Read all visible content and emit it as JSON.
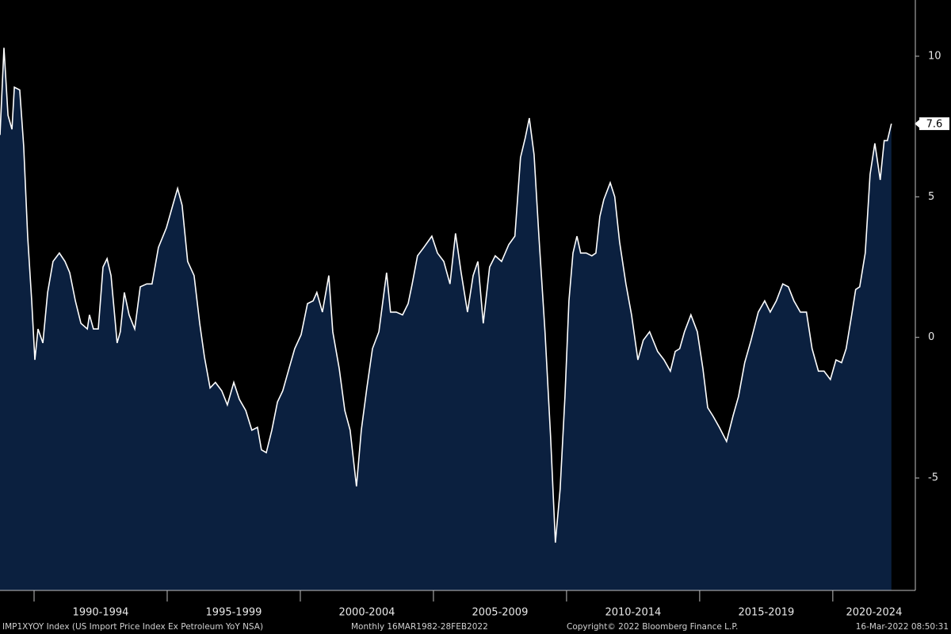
{
  "chart_data": {
    "type": "area",
    "series": [
      {
        "name": "IMP1XYOY Index",
        "color": "#ffffff",
        "fill": "#0b203f",
        "x": [
          1988.72,
          1988.87,
          1989.02,
          1989.17,
          1989.26,
          1989.46,
          1989.61,
          1989.76,
          1989.91,
          1990.03,
          1990.15,
          1990.33,
          1990.51,
          1990.71,
          1990.95,
          1991.16,
          1991.34,
          1991.55,
          1991.76,
          1992.0,
          1992.08,
          1992.23,
          1992.41,
          1992.59,
          1992.74,
          1992.89,
          1993.12,
          1993.24,
          1993.39,
          1993.57,
          1993.78,
          1993.99,
          1994.23,
          1994.43,
          1994.67,
          1994.97,
          1995.21,
          1995.39,
          1995.56,
          1995.77,
          1996.01,
          1996.22,
          1996.4,
          1996.61,
          1996.81,
          1997.05,
          1997.26,
          1997.5,
          1997.71,
          1997.95,
          1998.18,
          1998.39,
          1998.54,
          1998.72,
          1998.93,
          1999.14,
          1999.34,
          1999.58,
          1999.79,
          2000.03,
          2000.27,
          2000.48,
          2000.62,
          2000.83,
          2001.07,
          2001.22,
          2001.46,
          2001.67,
          2001.87,
          2002.11,
          2002.29,
          2002.5,
          2002.71,
          2002.95,
          2003.24,
          2003.39,
          2003.6,
          2003.84,
          2004.05,
          2004.2,
          2004.4,
          2004.64,
          2004.94,
          2005.15,
          2005.39,
          2005.62,
          2005.83,
          2006.04,
          2006.28,
          2006.49,
          2006.67,
          2006.87,
          2007.11,
          2007.32,
          2007.56,
          2007.83,
          2008.06,
          2008.27,
          2008.45,
          2008.6,
          2008.78,
          2008.96,
          2009.19,
          2009.4,
          2009.58,
          2009.76,
          2009.94,
          2010.09,
          2010.24,
          2010.39,
          2010.53,
          2010.74,
          2010.95,
          2011.1,
          2011.25,
          2011.4,
          2011.64,
          2011.81,
          2011.99,
          2012.23,
          2012.44,
          2012.68,
          2012.88,
          2013.12,
          2013.42,
          2013.66,
          2013.9,
          2014.08,
          2014.25,
          2014.43,
          2014.67,
          2014.91,
          2015.12,
          2015.3,
          2015.5,
          2015.74,
          2016.01,
          2016.25,
          2016.46,
          2016.69,
          2016.93,
          2017.2,
          2017.44,
          2017.65,
          2017.88,
          2018.12,
          2018.33,
          2018.54,
          2018.78,
          2019.01,
          2019.22,
          2019.46,
          2019.67,
          2019.91,
          2020.12,
          2020.33,
          2020.5,
          2020.71,
          2020.86,
          2021.01,
          2021.22,
          2021.4,
          2021.58,
          2021.78,
          2021.93,
          2022.05,
          2022.2
        ],
        "values": [
          7.2,
          10.3,
          7.9,
          7.4,
          8.9,
          8.8,
          6.8,
          3.6,
          1.3,
          -0.8,
          0.3,
          -0.2,
          1.6,
          2.7,
          3.0,
          2.7,
          2.3,
          1.3,
          0.5,
          0.3,
          0.8,
          0.3,
          0.3,
          2.5,
          2.8,
          2.2,
          -0.2,
          0.2,
          1.6,
          0.8,
          0.3,
          1.8,
          1.9,
          1.9,
          3.2,
          3.9,
          4.7,
          5.3,
          4.7,
          2.7,
          2.2,
          0.5,
          -0.7,
          -1.8,
          -1.6,
          -1.9,
          -2.4,
          -1.6,
          -2.2,
          -2.6,
          -3.3,
          -3.2,
          -4.0,
          -4.1,
          -3.3,
          -2.3,
          -1.9,
          -1.1,
          -0.4,
          0.1,
          1.2,
          1.3,
          1.6,
          0.9,
          2.2,
          0.2,
          -1.1,
          -2.6,
          -3.3,
          -5.3,
          -3.3,
          -1.8,
          -0.4,
          0.2,
          2.3,
          0.9,
          0.9,
          0.8,
          1.2,
          1.9,
          2.9,
          3.2,
          3.6,
          3.0,
          2.7,
          1.9,
          3.7,
          2.3,
          0.9,
          2.2,
          2.7,
          0.5,
          2.5,
          2.9,
          2.7,
          3.3,
          3.6,
          6.4,
          7.1,
          7.8,
          6.5,
          3.6,
          0.2,
          -3.5,
          -7.3,
          -5.4,
          -2.1,
          1.3,
          3.0,
          3.6,
          3.0,
          3.0,
          2.9,
          3.0,
          4.3,
          4.9,
          5.5,
          5.0,
          3.4,
          1.9,
          0.8,
          -0.8,
          -0.1,
          0.2,
          -0.5,
          -0.8,
          -1.2,
          -0.5,
          -0.4,
          0.2,
          0.8,
          0.2,
          -1.1,
          -2.5,
          -2.8,
          -3.2,
          -3.7,
          -2.8,
          -2.1,
          -0.9,
          -0.1,
          0.9,
          1.3,
          0.9,
          1.3,
          1.9,
          1.8,
          1.3,
          0.9,
          0.9,
          -0.4,
          -1.2,
          -1.2,
          -1.5,
          -0.8,
          -0.9,
          -0.4,
          0.8,
          1.7,
          1.8,
          3.0,
          5.8,
          6.9,
          5.6,
          7.0,
          7.0,
          7.6
        ]
      }
    ],
    "categories": [
      "1990-1994",
      "1995-1999",
      "2000-2004",
      "2005-2009",
      "2010-2014",
      "2015-2019",
      "2020-2024"
    ],
    "xlim": [
      1988.72,
      2023.1
    ],
    "xticks": [
      1990,
      1995,
      2000,
      2005,
      2010,
      2015,
      2020
    ],
    "ylim": [
      -9,
      12
    ],
    "yticks": [
      -5,
      0,
      5,
      10
    ],
    "footer": {
      "security": "IMP1XYOY Index (US Import Price Index Ex Petroleum YoY NSA)",
      "range": "Monthly 16MAR1982-28FEB2022",
      "copyright": "Copyright© 2022 Bloomberg Finance L.P.",
      "timestamp": "16-Mar-2022 08:50:31"
    }
  }
}
